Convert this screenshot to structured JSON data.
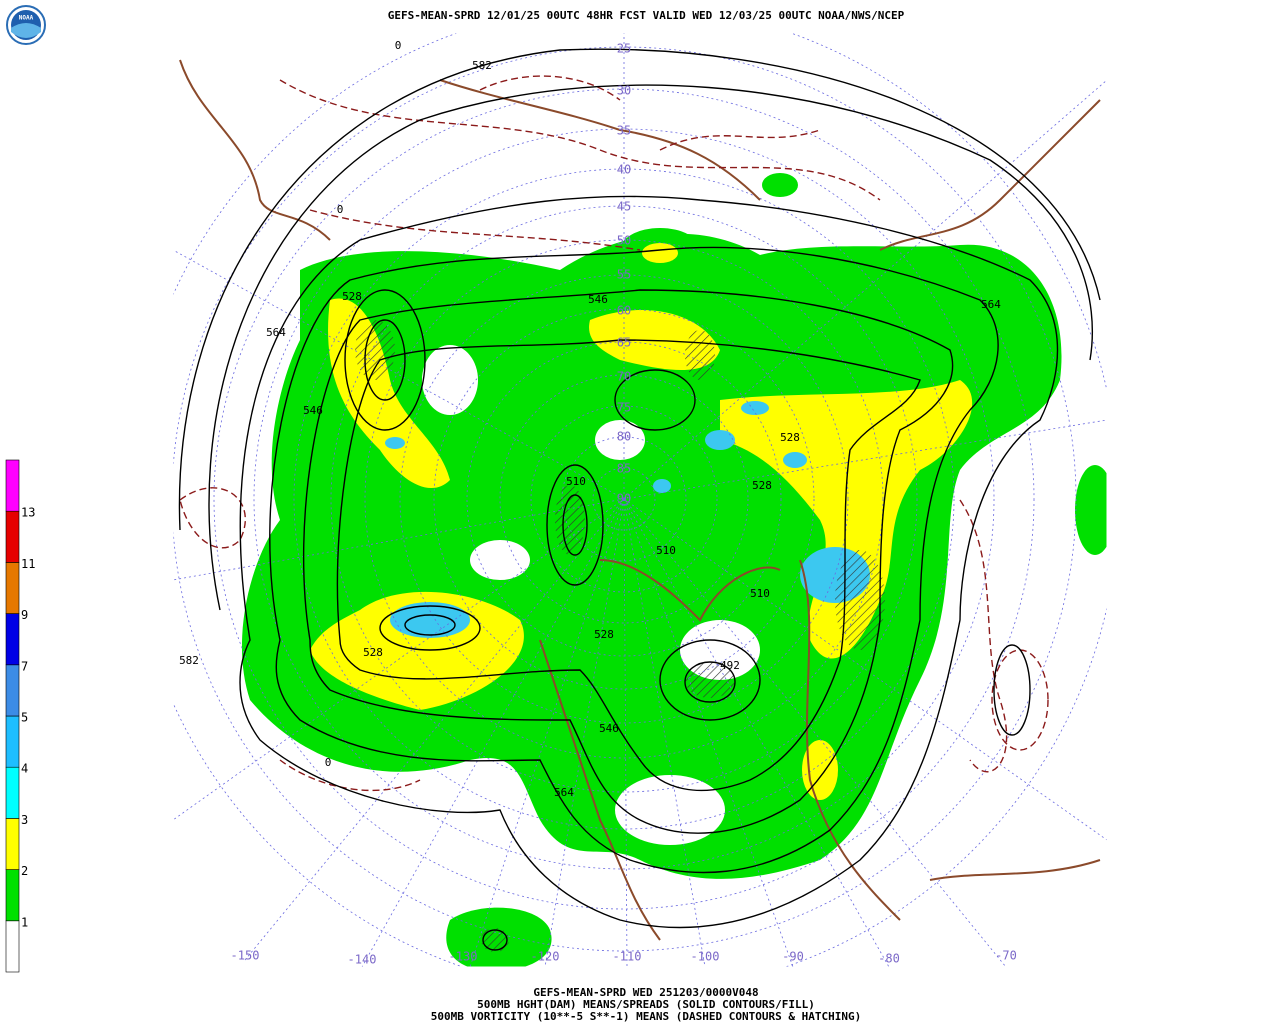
{
  "title": "GEFS-MEAN-SPRD 12/01/25 00UTC 48HR FCST VALID WED 12/03/25 00UTC NOAA/NWS/NCEP",
  "logo_text": "NOAA",
  "footer": [
    "GEFS-MEAN-SPRD WED 251203/0000V048",
    "500MB HGHT(DAM) MEANS/SPREADS (SOLID CONTOURS/FILL)",
    "500MB VORTICITY (10**-5 S**-1) MEANS (DASHED CONTOURS & HATCHING)"
  ],
  "colorbar": {
    "levels": [
      1,
      2,
      3,
      4,
      5,
      7,
      9,
      11,
      13
    ],
    "colors": [
      "#ffffff",
      "#00e000",
      "#ffff00",
      "#00ffff",
      "#1ebeff",
      "#3c8ce6",
      "#0000e6",
      "#e67800",
      "#e60000",
      "#ff00ff"
    ]
  },
  "longitude_labels": [
    "-150",
    "-140",
    "-130",
    "-120",
    "-110",
    "-100",
    "-90",
    "-80",
    "-70"
  ],
  "latitude_labels": [
    "25",
    "30",
    "35",
    "40",
    "45",
    "50",
    "55",
    "60",
    "65",
    "70",
    "75",
    "80",
    "85",
    "90"
  ],
  "contour_labels": [
    "528",
    "564",
    "546",
    "510",
    "510",
    "510",
    "528",
    "528",
    "528",
    "528",
    "582",
    "546",
    "564",
    "492",
    "564",
    "546",
    "582",
    "0",
    "0",
    "0"
  ]
}
